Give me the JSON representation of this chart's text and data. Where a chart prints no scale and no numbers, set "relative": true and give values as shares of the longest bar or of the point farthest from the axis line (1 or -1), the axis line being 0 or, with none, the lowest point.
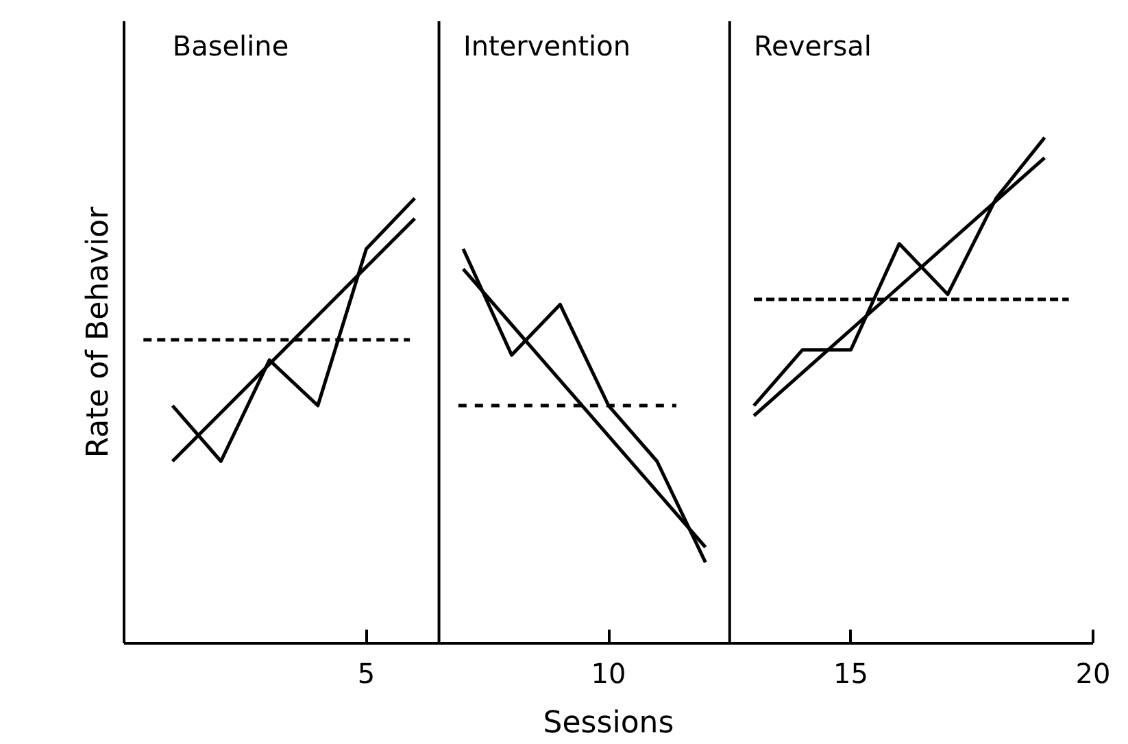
{
  "chart_data": {
    "type": "line",
    "relative": true,
    "xlabel": "Sessions",
    "ylabel": "Rate of Behavior",
    "xlim": [
      0,
      20
    ],
    "xticks": [
      5,
      10,
      15,
      20
    ],
    "tick_labels": "x",
    "grid": false,
    "annotations": [
      "Baseline",
      "Intervention",
      "Reversal"
    ],
    "ref_lines": [
      {
        "axis": "x",
        "value": 6.5,
        "color": "#000000"
      },
      {
        "axis": "x",
        "value": 12.5,
        "color": "#000000"
      }
    ],
    "series": [
      {
        "color": "#000000",
        "line_style": "solid",
        "x": [
          1,
          2,
          3,
          4,
          5,
          6
        ],
        "values": [
          0.47,
          0.36,
          0.56,
          0.47,
          0.78,
          0.88
        ]
      },
      {
        "color": "#000000",
        "line_style": "solid",
        "x": [
          7,
          8,
          9,
          10,
          11,
          12
        ],
        "values": [
          0.78,
          0.57,
          0.67,
          0.47,
          0.36,
          0.16
        ]
      },
      {
        "color": "#000000",
        "line_style": "solid",
        "x": [
          13,
          14,
          15,
          16,
          17,
          18,
          19
        ],
        "values": [
          0.47,
          0.58,
          0.58,
          0.79,
          0.69,
          0.88,
          1.0
        ]
      },
      {
        "color": "#000000",
        "line_style": "solid",
        "x": [
          1,
          6
        ],
        "values": [
          0.36,
          0.84
        ]
      },
      {
        "color": "#000000",
        "line_style": "solid",
        "x": [
          7,
          12
        ],
        "values": [
          0.74,
          0.19
        ]
      },
      {
        "color": "#000000",
        "line_style": "solid",
        "x": [
          13,
          19
        ],
        "values": [
          0.45,
          0.96
        ]
      },
      {
        "color": "#000000",
        "line_style": "dashed",
        "x": [
          0.4,
          5.9
        ],
        "values": [
          0.6,
          0.6
        ]
      },
      {
        "color": "#000000",
        "line_style": "dashed",
        "x": [
          6.9,
          11.4
        ],
        "values": [
          0.47,
          0.47
        ]
      },
      {
        "color": "#000000",
        "line_style": "dashed",
        "x": [
          13,
          19.5
        ],
        "values": [
          0.68,
          0.68
        ]
      }
    ]
  }
}
